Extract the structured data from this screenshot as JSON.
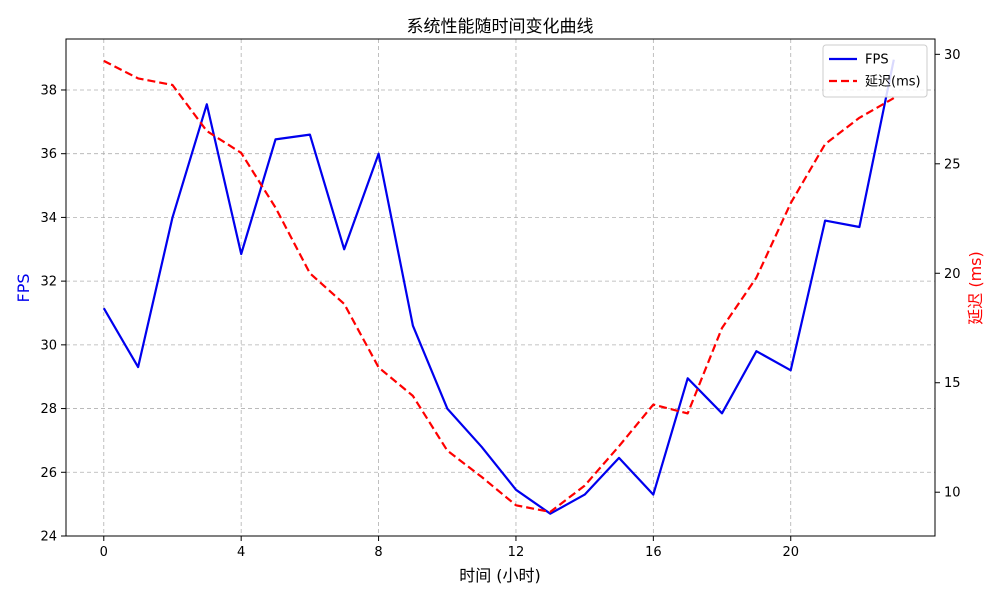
{
  "chart_data": {
    "type": "line",
    "title": "系统性能随时间变化曲线",
    "xlabel": "时间 (小时)",
    "ylabel_left": "FPS",
    "ylabel_right": "延迟 (ms)",
    "x": [
      0,
      1,
      2,
      3,
      4,
      5,
      6,
      7,
      8,
      9,
      10,
      11,
      12,
      13,
      14,
      15,
      16,
      17,
      18,
      19,
      20,
      21,
      22,
      23
    ],
    "xlim": [
      -1.1,
      24.2
    ],
    "ylim_left": [
      24,
      39.6
    ],
    "ylim_right": [
      8,
      30.7
    ],
    "x_ticks": [
      0,
      4,
      8,
      12,
      16,
      20
    ],
    "y_left_ticks": [
      24,
      26,
      28,
      30,
      32,
      34,
      36,
      38
    ],
    "y_right_ticks": [
      10,
      15,
      20,
      25,
      30
    ],
    "grid": true,
    "legend_position": "top-right",
    "series": [
      {
        "name": "FPS",
        "axis": "left",
        "color": "#0000ee",
        "style": "solid",
        "values": [
          31.15,
          29.3,
          34.0,
          37.55,
          32.85,
          36.45,
          36.6,
          33.0,
          36.0,
          30.6,
          28.0,
          26.8,
          25.45,
          24.7,
          25.3,
          26.45,
          25.3,
          28.95,
          27.85,
          29.8,
          29.2,
          33.9,
          33.7,
          38.95
        ]
      },
      {
        "name": "延迟(ms)",
        "axis": "right",
        "color": "#ff0000",
        "style": "dashed",
        "values": [
          29.7,
          28.9,
          28.6,
          26.5,
          25.5,
          23.0,
          20.0,
          18.6,
          15.7,
          14.4,
          11.9,
          10.7,
          9.4,
          9.1,
          10.3,
          12.1,
          14.0,
          13.6,
          17.5,
          19.8,
          23.2,
          25.9,
          27.1,
          28.0
        ]
      }
    ]
  }
}
